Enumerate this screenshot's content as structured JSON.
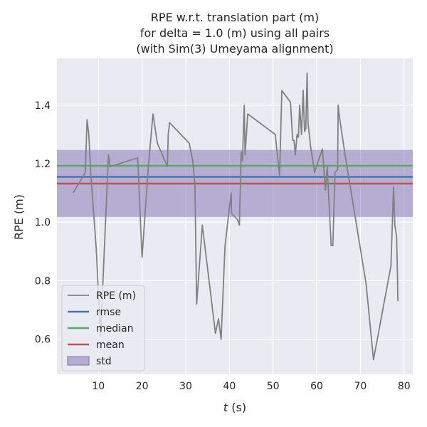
{
  "chart_data": {
    "type": "line",
    "title_lines": [
      "RPE w.r.t. translation part (m)",
      "for delta = 1.0 (m) using all pairs",
      "(with Sim(3) Umeyama alignment)"
    ],
    "xlabel_prefix": "t",
    "xlabel_suffix": " (s)",
    "ylabel": "RPE (m)",
    "xlim": [
      0.5,
      82
    ],
    "ylim": [
      0.48,
      1.56
    ],
    "xticks": [
      10,
      20,
      30,
      40,
      50,
      60,
      70,
      80
    ],
    "xtick_labels": [
      "10",
      "20",
      "30",
      "40",
      "50",
      "60",
      "70",
      "80"
    ],
    "yticks": [
      0.6,
      0.8,
      1.0,
      1.2,
      1.4
    ],
    "ytick_labels": [
      "0.6",
      "0.8",
      "1.0",
      "1.2",
      "1.4"
    ],
    "grid": true,
    "legend_position": "lower-left",
    "colors": {
      "background": "#eaeaf2",
      "grid": "#ffffff",
      "rpe": "#808080",
      "rmse": "#4c72b0",
      "median": "#55a868",
      "mean": "#c44e52",
      "std": "#8172b2"
    },
    "stats": {
      "rmse": 1.155,
      "median": 1.193,
      "mean": 1.132,
      "std_lower": 1.018,
      "std_upper": 1.247
    },
    "legend": [
      {
        "key": "rpe",
        "label": "RPE (m)",
        "kind": "line"
      },
      {
        "key": "rmse",
        "label": "rmse",
        "kind": "line"
      },
      {
        "key": "median",
        "label": "median",
        "kind": "line"
      },
      {
        "key": "mean",
        "label": "mean",
        "kind": "line"
      },
      {
        "key": "std",
        "label": "std",
        "kind": "patch"
      }
    ],
    "series": [
      {
        "name": "RPE (m)",
        "x": [
          4.2,
          7.0,
          7.4,
          7.8,
          8.2,
          9.5,
          10.5,
          12.3,
          12.7,
          19.0,
          20.0,
          21.5,
          22.5,
          23.5,
          25.8,
          26.0,
          26.3,
          30.8,
          31.6,
          32.1,
          32.5,
          33.8,
          36.8,
          37.5,
          38.1,
          39.0,
          40.4,
          40.5,
          41.8,
          42.3,
          42.7,
          43.0,
          43.4,
          43.6,
          44.2,
          50.5,
          51.5,
          52.0,
          54.0,
          54.5,
          54.8,
          55.1,
          55.5,
          55.8,
          56.1,
          56.5,
          56.9,
          57.2,
          57.5,
          57.8,
          58.0,
          58.6,
          59.5,
          60.6,
          61.3,
          62.0,
          62.4,
          63.3,
          63.7,
          64.2,
          64.8,
          64.9,
          65.3,
          66.5,
          71.3,
          73.0,
          77.0,
          77.6,
          77.9,
          78.3,
          78.5,
          78.6
        ],
        "y": [
          1.1,
          1.17,
          1.35,
          1.3,
          1.18,
          0.91,
          0.61,
          1.23,
          1.19,
          1.22,
          0.88,
          1.2,
          1.37,
          1.27,
          1.19,
          1.3,
          1.34,
          1.27,
          1.21,
          1.13,
          0.72,
          0.99,
          0.62,
          0.67,
          0.6,
          0.92,
          1.1,
          1.03,
          1.01,
          0.99,
          1.24,
          1.21,
          1.4,
          1.23,
          1.37,
          1.3,
          1.16,
          1.45,
          1.41,
          1.28,
          1.28,
          1.23,
          1.3,
          1.29,
          1.4,
          1.3,
          1.45,
          1.31,
          1.32,
          1.51,
          1.34,
          1.26,
          1.17,
          1.22,
          1.25,
          1.11,
          1.19,
          0.92,
          0.92,
          1.17,
          1.18,
          1.4,
          1.35,
          1.23,
          0.79,
          0.53,
          0.85,
          1.12,
          0.99,
          0.95,
          0.82,
          0.73
        ]
      }
    ]
  }
}
